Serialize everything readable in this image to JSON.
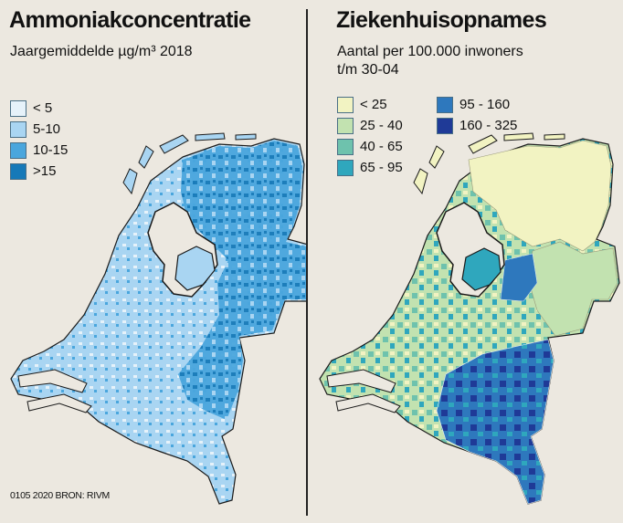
{
  "left": {
    "title": "Ammoniakconcentratie",
    "subtitle": "Jaargemiddelde µg/m³ 2018",
    "legend": [
      {
        "label": "< 5",
        "color": "#e6f2fa"
      },
      {
        "label": "5-10",
        "color": "#a9d5f2"
      },
      {
        "label": "10-15",
        "color": "#4aa6dd"
      },
      {
        "label": ">15",
        "color": "#1679b8"
      }
    ]
  },
  "right": {
    "title": "Ziekenhuisopnames",
    "subtitle_line1": "Aantal per 100.000 inwoners",
    "subtitle_line2": "t/m 30-04",
    "legend": [
      {
        "label": "< 25",
        "color": "#f2f3c2"
      },
      {
        "label": "25 - 40",
        "color": "#c2e2b0"
      },
      {
        "label": "40 - 65",
        "color": "#6ec2ad"
      },
      {
        "label": "65 - 95",
        "color": "#2fa7bd"
      },
      {
        "label": "95 - 160",
        "color": "#2e78bd"
      },
      {
        "label": "160 - 325",
        "color": "#1f3a97"
      }
    ]
  },
  "footer": {
    "source": "0105 2020 BRON: RIVM"
  },
  "colors": {
    "background": "#ece8e0",
    "outline": "#1a1a1a",
    "water": "#ece8e0"
  }
}
